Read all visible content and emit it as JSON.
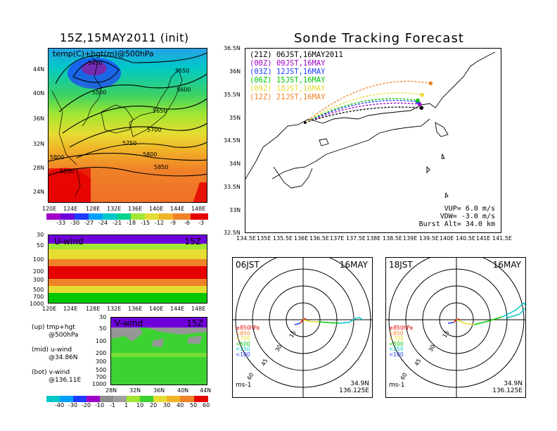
{
  "left": {
    "title": "15Z,15MAY2011 (init)",
    "map_label": "temp(C)+hgt(m)@500hPa",
    "lat_ticks": [
      "44N",
      "40N",
      "36N",
      "32N",
      "28N",
      "24N"
    ],
    "lon_ticks": [
      "120E",
      "124E",
      "128E",
      "132E",
      "136E",
      "140E",
      "144E",
      "148E"
    ],
    "contour_labels": [
      "5450",
      "5500",
      "5550",
      "5600",
      "5650",
      "5700",
      "5750",
      "5800",
      "5800",
      "5850",
      "5850"
    ],
    "temp_colorbar": [
      "-33",
      "-30",
      "-27",
      "-24",
      "-21",
      "-18",
      "-15",
      "-12",
      "-9",
      "-6",
      "-3"
    ],
    "uwind_label": "U-wind",
    "uwind_time": "15Z",
    "uwind_pressure_ticks": [
      "30",
      "50",
      "100",
      "200",
      "300",
      "500",
      "700",
      "1000"
    ],
    "uwind_lon_ticks": [
      "120E",
      "124E",
      "128E",
      "132E",
      "136E",
      "140E",
      "144E",
      "148E"
    ],
    "vwind_label": "V-wind",
    "vwind_time": "15Z",
    "vwind_pressure_ticks": [
      "30",
      "50",
      "100",
      "200",
      "300",
      "500",
      "700",
      "1000"
    ],
    "vwind_lat_ticks": [
      "28N",
      "32N",
      "36N",
      "40N",
      "44N"
    ],
    "wind_colorbar": [
      "-40",
      "-30",
      "-20",
      "-10",
      "-1",
      "1",
      "10",
      "20",
      "30",
      "40",
      "50",
      "60"
    ],
    "notes": [
      {
        "a": "(up) tmp+hgt",
        "b": "@500hPa"
      },
      {
        "a": "(mid) u-wind",
        "b": "@34.86N"
      },
      {
        "a": "(bot) v-wind",
        "b": "@136.11E"
      }
    ]
  },
  "right": {
    "title": "Sonde Tracking Forecast",
    "lat_ticks": [
      "36.5N",
      "36N",
      "35.5N",
      "35N",
      "34.5N",
      "34N",
      "33.5N",
      "33N",
      "32.5N"
    ],
    "lon_ticks": [
      "134.5E",
      "135E",
      "135.5E",
      "136E",
      "136.5E",
      "137E",
      "137.5E",
      "138E",
      "138.5E",
      "139E",
      "139.5E",
      "140E",
      "140.5E",
      "141E",
      "141.5E"
    ],
    "legend": [
      {
        "tag": "(21Z)",
        "text": "06JST,16MAY2011",
        "color": "#000000"
      },
      {
        "tag": "(00Z)",
        "text": "09JST,16MAY",
        "color": "#a000c8"
      },
      {
        "tag": "(03Z)",
        "text": "12JST,16MAY",
        "color": "#1e3cff"
      },
      {
        "tag": "(06Z)",
        "text": "15JST,16MAY",
        "color": "#00c800"
      },
      {
        "tag": "(09Z)",
        "text": "18JST,16MAY",
        "color": "#e6dc32"
      },
      {
        "tag": "(12Z)",
        "text": "21JST,16MAY",
        "color": "#f08228"
      }
    ],
    "params": [
      "VUP=  6.0 m/s",
      "VDW= -3.0 m/s",
      "Burst Alt= 34.0 km"
    ]
  },
  "polar": [
    {
      "time": "06JST",
      "date": "16MAY",
      "unit": "ms-1",
      "lat": "34.9N",
      "lon": "136.125E",
      "ring_labels": [
        "15",
        "30",
        "45",
        "60"
      ],
      "levels": [
        "≥850hPa",
        "<850",
        "<700",
        "<500",
        "<250",
        "<100"
      ]
    },
    {
      "time": "18JST",
      "date": "16MAY",
      "unit": "ms-1",
      "lat": "34.9N",
      "lon": "136.125E",
      "ring_labels": [
        "15",
        "30",
        "45",
        "60"
      ],
      "levels": [
        "≥850hPa",
        "<850",
        "<700",
        "<500",
        "<250",
        "<100"
      ]
    }
  ],
  "level_colors": [
    "#e60000",
    "#f08228",
    "#e6dc32",
    "#00c800",
    "#00c8c8",
    "#1e3cff"
  ],
  "chart_data": [
    {
      "type": "heatmap",
      "title": "15Z,15MAY2011 (init)",
      "label": "temp(C)+hgt(m)@500hPa",
      "x_ticks": [
        "120E",
        "124E",
        "128E",
        "132E",
        "136E",
        "140E",
        "144E",
        "148E"
      ],
      "y_ticks": [
        "24N",
        "28N",
        "32N",
        "36N",
        "40N",
        "44N"
      ],
      "contours": [
        5450,
        5500,
        5550,
        5600,
        5650,
        5700,
        5750,
        5800,
        5850
      ],
      "colorbar": [
        -33,
        -30,
        -27,
        -24,
        -21,
        -18,
        -15,
        -12,
        -9,
        -6,
        -3
      ]
    },
    {
      "type": "heatmap",
      "label": "U-wind",
      "time": "15Z",
      "x_ticks": [
        "120E",
        "124E",
        "128E",
        "132E",
        "136E",
        "140E",
        "144E",
        "148E"
      ],
      "y_ticks": [
        30,
        50,
        100,
        200,
        300,
        500,
        700,
        1000
      ]
    },
    {
      "type": "heatmap",
      "label": "V-wind",
      "time": "15Z",
      "x_ticks": [
        "28N",
        "32N",
        "36N",
        "40N",
        "44N"
      ],
      "y_ticks": [
        30,
        50,
        100,
        200,
        300,
        500,
        700,
        1000
      ],
      "colorbar": [
        -40,
        -30,
        -20,
        -10,
        -1,
        1,
        10,
        20,
        30,
        40,
        50,
        60
      ]
    },
    {
      "type": "line",
      "title": "Sonde Tracking Forecast",
      "xlim": [
        134.5,
        141.5
      ],
      "ylim": [
        32.5,
        36.5
      ],
      "launch": {
        "lon": 136.125,
        "lat": 34.9
      },
      "series": [
        {
          "name": "06JST,16MAY2011",
          "color": "#000000",
          "end": {
            "lon": 139.3,
            "lat": 35.22
          }
        },
        {
          "name": "09JST,16MAY",
          "color": "#a000c8",
          "end": {
            "lon": 139.25,
            "lat": 35.3
          }
        },
        {
          "name": "12JST,16MAY",
          "color": "#1e3cff",
          "end": {
            "lon": 139.2,
            "lat": 35.35
          }
        },
        {
          "name": "15JST,16MAY",
          "color": "#00c800",
          "end": {
            "lon": 139.2,
            "lat": 35.38
          }
        },
        {
          "name": "18JST,16MAY",
          "color": "#e6dc32",
          "end": {
            "lon": 139.32,
            "lat": 35.5
          }
        },
        {
          "name": "21JST,16MAY",
          "color": "#f08228",
          "end": {
            "lon": 139.55,
            "lat": 35.75
          }
        }
      ]
    }
  ]
}
